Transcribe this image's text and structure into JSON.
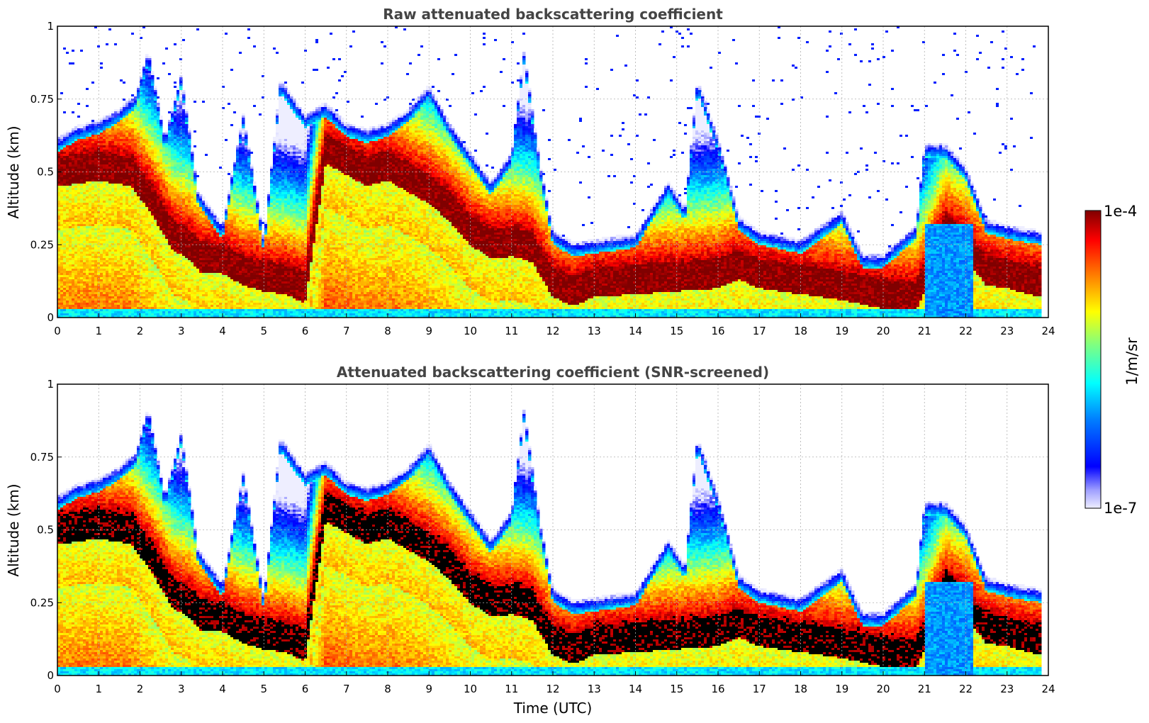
{
  "chart_data": [
    {
      "type": "heatmap",
      "title": "Raw attenuated backscattering coefficient",
      "xlabel": "",
      "ylabel": "Altitude (km)",
      "xlim": [
        0,
        24
      ],
      "ylim": [
        0,
        1
      ],
      "xticks": [
        "0",
        "1",
        "2",
        "3",
        "4",
        "5",
        "6",
        "7",
        "8",
        "9",
        "10",
        "11",
        "12",
        "13",
        "14",
        "15",
        "16",
        "17",
        "18",
        "19",
        "20",
        "21",
        "22",
        "23",
        "24"
      ],
      "yticks": [
        "0",
        "0.25",
        "0.5",
        "0.75",
        "1"
      ],
      "grid": true,
      "screened": false,
      "layer_top_km": [
        {
          "x": 0.0,
          "y": 0.6
        },
        {
          "x": 0.5,
          "y": 0.64
        },
        {
          "x": 1.0,
          "y": 0.66
        },
        {
          "x": 1.5,
          "y": 0.7
        },
        {
          "x": 1.9,
          "y": 0.75
        },
        {
          "x": 2.2,
          "y": 0.9
        },
        {
          "x": 2.6,
          "y": 0.6
        },
        {
          "x": 3.0,
          "y": 0.82
        },
        {
          "x": 3.4,
          "y": 0.42
        },
        {
          "x": 4.0,
          "y": 0.3
        },
        {
          "x": 4.5,
          "y": 0.68
        },
        {
          "x": 5.0,
          "y": 0.25
        },
        {
          "x": 5.4,
          "y": 0.8
        },
        {
          "x": 6.0,
          "y": 0.68
        },
        {
          "x": 6.5,
          "y": 0.72
        },
        {
          "x": 7.0,
          "y": 0.65
        },
        {
          "x": 7.5,
          "y": 0.63
        },
        {
          "x": 8.0,
          "y": 0.65
        },
        {
          "x": 8.5,
          "y": 0.7
        },
        {
          "x": 9.0,
          "y": 0.78
        },
        {
          "x": 9.5,
          "y": 0.65
        },
        {
          "x": 10.0,
          "y": 0.55
        },
        {
          "x": 10.5,
          "y": 0.45
        },
        {
          "x": 11.0,
          "y": 0.55
        },
        {
          "x": 11.3,
          "y": 0.9
        },
        {
          "x": 11.7,
          "y": 0.5
        },
        {
          "x": 12.0,
          "y": 0.28
        },
        {
          "x": 12.5,
          "y": 0.24
        },
        {
          "x": 13.0,
          "y": 0.25
        },
        {
          "x": 14.0,
          "y": 0.27
        },
        {
          "x": 14.8,
          "y": 0.45
        },
        {
          "x": 15.2,
          "y": 0.36
        },
        {
          "x": 15.5,
          "y": 0.8
        },
        {
          "x": 16.0,
          "y": 0.6
        },
        {
          "x": 16.5,
          "y": 0.33
        },
        {
          "x": 17.0,
          "y": 0.28
        },
        {
          "x": 18.0,
          "y": 0.25
        },
        {
          "x": 19.0,
          "y": 0.35
        },
        {
          "x": 19.5,
          "y": 0.2
        },
        {
          "x": 20.0,
          "y": 0.2
        },
        {
          "x": 20.8,
          "y": 0.3
        },
        {
          "x": 21.0,
          "y": 0.58
        },
        {
          "x": 21.5,
          "y": 0.58
        },
        {
          "x": 22.0,
          "y": 0.5
        },
        {
          "x": 22.5,
          "y": 0.32
        },
        {
          "x": 23.0,
          "y": 0.3
        },
        {
          "x": 23.8,
          "y": 0.28
        }
      ],
      "core_layer_km": [
        {
          "x": 0.0,
          "y": 0.5
        },
        {
          "x": 1.0,
          "y": 0.52
        },
        {
          "x": 1.8,
          "y": 0.5
        },
        {
          "x": 2.3,
          "y": 0.4
        },
        {
          "x": 2.8,
          "y": 0.28
        },
        {
          "x": 3.2,
          "y": 0.25
        },
        {
          "x": 3.5,
          "y": 0.2
        },
        {
          "x": 4.0,
          "y": 0.2
        },
        {
          "x": 4.5,
          "y": 0.16
        },
        {
          "x": 5.0,
          "y": 0.14
        },
        {
          "x": 5.5,
          "y": 0.13
        },
        {
          "x": 6.0,
          "y": 0.1
        },
        {
          "x": 6.5,
          "y": 0.58
        },
        {
          "x": 7.0,
          "y": 0.54
        },
        {
          "x": 7.5,
          "y": 0.5
        },
        {
          "x": 8.0,
          "y": 0.52
        },
        {
          "x": 8.5,
          "y": 0.48
        },
        {
          "x": 9.0,
          "y": 0.44
        },
        {
          "x": 9.5,
          "y": 0.38
        },
        {
          "x": 10.0,
          "y": 0.3
        },
        {
          "x": 10.5,
          "y": 0.25
        },
        {
          "x": 11.0,
          "y": 0.26
        },
        {
          "x": 11.5,
          "y": 0.24
        },
        {
          "x": 12.0,
          "y": 0.12
        },
        {
          "x": 12.5,
          "y": 0.09
        },
        {
          "x": 13.0,
          "y": 0.12
        },
        {
          "x": 14.0,
          "y": 0.13
        },
        {
          "x": 15.0,
          "y": 0.14
        },
        {
          "x": 16.0,
          "y": 0.15
        },
        {
          "x": 16.5,
          "y": 0.18
        },
        {
          "x": 17.0,
          "y": 0.15
        },
        {
          "x": 18.0,
          "y": 0.13
        },
        {
          "x": 19.0,
          "y": 0.11
        },
        {
          "x": 20.0,
          "y": 0.08
        },
        {
          "x": 20.8,
          "y": 0.07
        },
        {
          "x": 21.5,
          "y": 0.3
        },
        {
          "x": 22.0,
          "y": 0.25
        },
        {
          "x": 22.5,
          "y": 0.16
        },
        {
          "x": 23.0,
          "y": 0.15
        },
        {
          "x": 23.8,
          "y": 0.12
        }
      ],
      "clear_sky_periods_h": [
        [
          21.0,
          22.2
        ]
      ]
    },
    {
      "type": "heatmap",
      "title": "Attenuated backscattering coefficient (SNR-screened)",
      "xlabel": "Time (UTC)",
      "ylabel": "Altitude (km)",
      "xlim": [
        0,
        24
      ],
      "ylim": [
        0,
        1
      ],
      "xticks": [
        "0",
        "1",
        "2",
        "3",
        "4",
        "5",
        "6",
        "7",
        "8",
        "9",
        "10",
        "11",
        "12",
        "13",
        "14",
        "15",
        "16",
        "17",
        "18",
        "19",
        "20",
        "21",
        "22",
        "23",
        "24"
      ],
      "yticks": [
        "0",
        "0.25",
        "0.5",
        "0.75",
        "1"
      ],
      "grid": true,
      "screened": true
    }
  ],
  "colorbar": {
    "label": "1/m/sr",
    "max_label": "1e-4",
    "min_label": "1e-7",
    "scale": "log",
    "colormap": "jet",
    "colors": [
      "#eeeeff",
      "#0000ff",
      "#0080ff",
      "#00ffff",
      "#80ff80",
      "#ffff00",
      "#ff8000",
      "#ff0000",
      "#800000"
    ]
  }
}
